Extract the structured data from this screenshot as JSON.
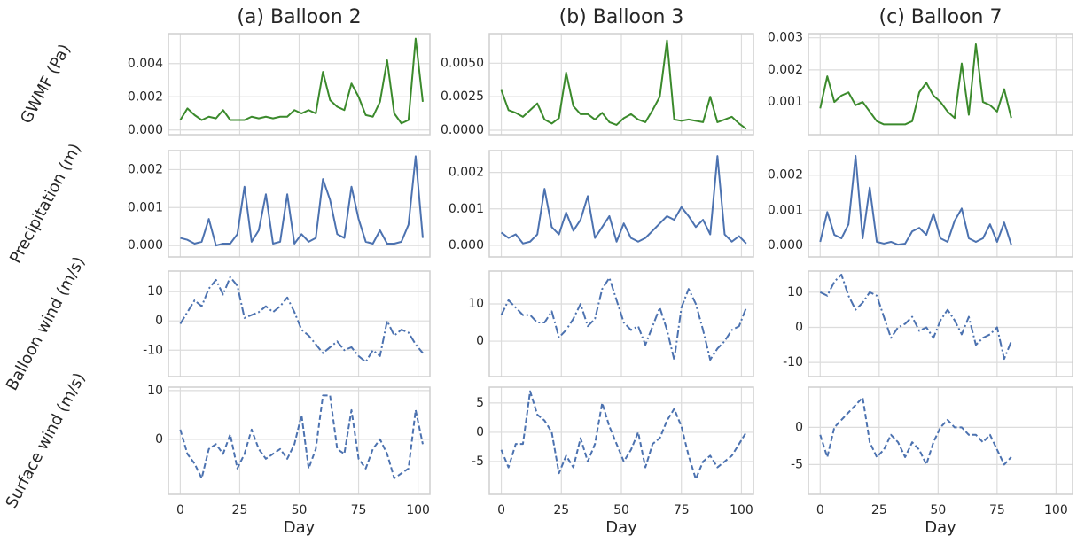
{
  "chart_data": [
    {
      "type": "line",
      "title": "(a) Balloon 2",
      "ylabel": "GWMF (Pa)",
      "x": [
        0,
        3,
        6,
        9,
        12,
        15,
        18,
        21,
        24,
        27,
        30,
        33,
        36,
        39,
        42,
        45,
        48,
        51,
        54,
        57,
        60,
        63,
        66,
        69,
        72,
        75,
        78,
        81,
        84,
        87,
        90,
        93,
        96,
        99,
        102
      ],
      "series": [
        {
          "color": "#3b8a2c",
          "linestyle": "solid",
          "values": [
            0.0006,
            0.0013,
            0.0009,
            0.0006,
            0.0008,
            0.0007,
            0.0012,
            0.0006,
            0.0006,
            0.0006,
            0.0008,
            0.0007,
            0.0008,
            0.0007,
            0.0008,
            0.0008,
            0.0012,
            0.001,
            0.0012,
            0.001,
            0.0035,
            0.0018,
            0.0014,
            0.0012,
            0.0028,
            0.002,
            0.0009,
            0.0008,
            0.0017,
            0.0042,
            0.001,
            0.0004,
            0.0006,
            0.0055,
            0.0017
          ]
        }
      ],
      "xlim": [
        -5,
        105
      ],
      "ylim": [
        -0.00028,
        0.0058
      ],
      "xticks": [
        0,
        25,
        50,
        75,
        100
      ],
      "xtick_labels": false,
      "yticks": [
        {
          "value": 0,
          "label": "0.000"
        },
        0.002,
        0.004
      ],
      "grid": true
    },
    {
      "type": "line",
      "title": "(b) Balloon 3",
      "x": [
        0,
        3,
        6,
        9,
        12,
        15,
        18,
        21,
        24,
        27,
        30,
        33,
        36,
        39,
        42,
        45,
        48,
        51,
        54,
        57,
        60,
        63,
        66,
        69,
        72,
        75,
        78,
        81,
        84,
        87,
        90,
        93,
        96,
        99,
        102
      ],
      "series": [
        {
          "color": "#3b8a2c",
          "linestyle": "solid",
          "values": [
            0.003,
            0.0015,
            0.0013,
            0.001,
            0.0015,
            0.002,
            0.0008,
            0.0005,
            0.0009,
            0.0043,
            0.0018,
            0.0012,
            0.0012,
            0.0008,
            0.0013,
            0.0006,
            0.0004,
            0.0009,
            0.0012,
            0.0008,
            0.0006,
            0.0015,
            0.0025,
            0.0067,
            0.0008,
            0.0007,
            0.0008,
            0.0007,
            0.0006,
            0.0025,
            0.0006,
            0.0008,
            0.001,
            0.0005,
            0.0001
          ]
        }
      ],
      "xlim": [
        -5,
        105
      ],
      "ylim": [
        -0.00033,
        0.0072
      ],
      "xticks": [
        0,
        25,
        50,
        75,
        100
      ],
      "xtick_labels": false,
      "yticks": [
        {
          "value": 0,
          "label": "0.0000"
        },
        0.0025,
        {
          "value": 0.005,
          "label": "0.0050"
        }
      ],
      "grid": true
    },
    {
      "type": "line",
      "title": "(c) Balloon 7",
      "x": [
        0,
        3,
        6,
        9,
        12,
        15,
        18,
        21,
        24,
        27,
        30,
        33,
        36,
        39,
        42,
        45,
        48,
        51,
        54,
        57,
        60,
        63,
        66,
        69,
        72,
        75,
        78,
        81
      ],
      "series": [
        {
          "color": "#3b8a2c",
          "linestyle": "solid",
          "values": [
            0.0008,
            0.0018,
            0.001,
            0.0012,
            0.0013,
            0.0009,
            0.001,
            0.0007,
            0.0004,
            0.0003,
            0.0003,
            0.0003,
            0.0003,
            0.0004,
            0.0013,
            0.0016,
            0.0012,
            0.001,
            0.0007,
            0.0005,
            0.0022,
            0.0006,
            0.0028,
            0.001,
            0.0009,
            0.0007,
            0.0014,
            0.0005
          ]
        }
      ],
      "xlim": [
        -5,
        107
      ],
      "ylim": [
        -2e-05,
        0.00313
      ],
      "xticks": [
        0,
        25,
        50,
        75,
        100
      ],
      "xtick_labels": false,
      "yticks": [
        0.001,
        0.002,
        0.003
      ],
      "grid": true
    },
    {
      "type": "line",
      "ylabel": "Precipitation (m)",
      "x": [
        0,
        3,
        6,
        9,
        12,
        15,
        18,
        21,
        24,
        27,
        30,
        33,
        36,
        39,
        42,
        45,
        48,
        51,
        54,
        57,
        60,
        63,
        66,
        69,
        72,
        75,
        78,
        81,
        84,
        87,
        90,
        93,
        96,
        99,
        102
      ],
      "series": [
        {
          "color": "#4c72b0",
          "linestyle": "solid",
          "values": [
            0.0002,
            0.00015,
            5e-05,
            0.0001,
            0.0007,
            0,
            5e-05,
            5e-05,
            0.0003,
            0.00155,
            0.0001,
            0.0004,
            0.00135,
            5e-05,
            0.0001,
            0.00135,
            5e-05,
            0.0003,
            0.0001,
            0.0002,
            0.00175,
            0.0012,
            0.0003,
            0.0002,
            0.00155,
            0.0007,
            0.0001,
            5e-05,
            0.0004,
            5e-05,
            5e-05,
            0.0001,
            0.00055,
            0.00235,
            0.0002
          ]
        }
      ],
      "xlim": [
        -5,
        105
      ],
      "ylim": [
        -0.0003,
        0.0025
      ],
      "xticks": [
        0,
        25,
        50,
        75,
        100
      ],
      "xtick_labels": false,
      "yticks": [
        {
          "value": 0,
          "label": "0.000"
        },
        0.001,
        0.002
      ],
      "grid": true
    },
    {
      "type": "line",
      "x": [
        0,
        3,
        6,
        9,
        12,
        15,
        18,
        21,
        24,
        27,
        30,
        33,
        36,
        39,
        42,
        45,
        48,
        51,
        54,
        57,
        60,
        63,
        66,
        69,
        72,
        75,
        78,
        81,
        84,
        87,
        90,
        93,
        96,
        99,
        102
      ],
      "series": [
        {
          "color": "#4c72b0",
          "linestyle": "solid",
          "values": [
            0.00035,
            0.0002,
            0.0003,
            5e-05,
            0.0001,
            0.0003,
            0.00155,
            0.0005,
            0.0003,
            0.0009,
            0.0004,
            0.0007,
            0.00135,
            0.0002,
            0.0005,
            0.0008,
            0.0001,
            0.0006,
            0.0002,
            0.0001,
            0.0002,
            0.0004,
            0.0006,
            0.0008,
            0.0007,
            0.00105,
            0.0008,
            0.0005,
            0.0007,
            0.0003,
            0.00245,
            0.0003,
            0.0001,
            0.00025,
            5e-05
          ]
        }
      ],
      "xlim": [
        -5,
        105
      ],
      "ylim": [
        -0.00032,
        0.0026
      ],
      "xticks": [
        0,
        25,
        50,
        75,
        100
      ],
      "xtick_labels": false,
      "yticks": [
        {
          "value": 0,
          "label": "0.000"
        },
        0.001,
        0.002
      ],
      "grid": true
    },
    {
      "type": "line",
      "x": [
        0,
        3,
        6,
        9,
        12,
        15,
        18,
        21,
        24,
        27,
        30,
        33,
        36,
        39,
        42,
        45,
        48,
        51,
        54,
        57,
        60,
        63,
        66,
        69,
        72,
        75,
        78,
        81
      ],
      "series": [
        {
          "color": "#4c72b0",
          "linestyle": "solid",
          "values": [
            0.0001,
            0.00095,
            0.0003,
            0.0002,
            0.0006,
            0.00255,
            0.0002,
            0.00165,
            0.0001,
            5e-05,
            0.0001,
            2e-05,
            5e-05,
            0.0004,
            0.0005,
            0.0003,
            0.0009,
            0.0002,
            0.0001,
            0.0007,
            0.00105,
            0.0002,
            0.0001,
            0.0002,
            0.0006,
            0.0001,
            0.00065,
            2e-05
          ]
        }
      ],
      "xlim": [
        -5,
        107
      ],
      "ylim": [
        -0.00033,
        0.0027
      ],
      "xticks": [
        0,
        25,
        50,
        75,
        100
      ],
      "xtick_labels": false,
      "yticks": [
        {
          "value": 0,
          "label": "0.000"
        },
        0.001,
        0.002
      ],
      "grid": true
    },
    {
      "type": "line",
      "ylabel": "Balloon wind (m/s)",
      "x": [
        0,
        3,
        6,
        9,
        12,
        15,
        18,
        21,
        24,
        27,
        30,
        33,
        36,
        39,
        42,
        45,
        48,
        51,
        54,
        57,
        60,
        63,
        66,
        69,
        72,
        75,
        78,
        81,
        84,
        87,
        90,
        93,
        96,
        99,
        102
      ],
      "series": [
        {
          "color": "#4c72b0",
          "linestyle": "dashdot",
          "values": [
            -1,
            3,
            7,
            5,
            11,
            14,
            9,
            15,
            12,
            1,
            2,
            3,
            5,
            3,
            5,
            8,
            3,
            -3,
            -5,
            -8,
            -11,
            -9,
            -7,
            -10,
            -9,
            -12,
            -14,
            -10,
            -12,
            0,
            -5,
            -3,
            -4,
            -8,
            -11
          ]
        }
      ],
      "xlim": [
        -5,
        105
      ],
      "ylim": [
        -19,
        17
      ],
      "xticks": [
        0,
        25,
        50,
        75,
        100
      ],
      "xtick_labels": false,
      "yticks": [
        -10,
        0,
        10
      ],
      "grid": true
    },
    {
      "type": "line",
      "x": [
        0,
        3,
        6,
        9,
        12,
        15,
        18,
        21,
        24,
        27,
        30,
        33,
        36,
        39,
        42,
        45,
        48,
        51,
        54,
        57,
        60,
        63,
        66,
        69,
        72,
        75,
        78,
        81,
        84,
        87,
        90,
        93,
        96,
        99,
        102
      ],
      "series": [
        {
          "color": "#4c72b0",
          "linestyle": "dashdot",
          "values": [
            7,
            11,
            9,
            7,
            7,
            5,
            5,
            8,
            1,
            3,
            6,
            10,
            4,
            6,
            14,
            17,
            11,
            5,
            3,
            4,
            -1,
            4,
            9,
            3,
            -5,
            9,
            14,
            10,
            3,
            -5,
            -2,
            0,
            3,
            4,
            9
          ]
        }
      ],
      "xlim": [
        -5,
        105
      ],
      "ylim": [
        -9.5,
        18.8
      ],
      "xticks": [
        0,
        25,
        50,
        75,
        100
      ],
      "xtick_labels": false,
      "yticks": [
        0,
        10
      ],
      "grid": true
    },
    {
      "type": "line",
      "x": [
        0,
        3,
        6,
        9,
        12,
        15,
        18,
        21,
        24,
        27,
        30,
        33,
        36,
        39,
        42,
        45,
        48,
        51,
        54,
        57,
        60,
        63,
        66,
        69,
        72,
        75,
        78,
        81
      ],
      "series": [
        {
          "color": "#4c72b0",
          "linestyle": "dashdot",
          "values": [
            10,
            9,
            13,
            15,
            9,
            5,
            7,
            10,
            9,
            3,
            -3,
            0,
            1,
            3,
            -1,
            0,
            -3,
            2,
            5,
            2,
            -2,
            3,
            -5,
            -3,
            -2,
            0,
            -9,
            -4
          ]
        }
      ],
      "xlim": [
        -5,
        107
      ],
      "ylim": [
        -14,
        16
      ],
      "xticks": [
        0,
        25,
        50,
        75,
        100
      ],
      "xtick_labels": false,
      "yticks": [
        -10,
        0,
        10
      ],
      "grid": true
    },
    {
      "type": "line",
      "ylabel": "Surface wind (m/s)",
      "xlabel": "Day",
      "x": [
        0,
        3,
        6,
        9,
        12,
        15,
        18,
        21,
        24,
        27,
        30,
        33,
        36,
        39,
        42,
        45,
        48,
        51,
        54,
        57,
        60,
        63,
        66,
        69,
        72,
        75,
        78,
        81,
        84,
        87,
        90,
        93,
        96,
        99,
        102
      ],
      "series": [
        {
          "color": "#4c72b0",
          "linestyle": "dashed",
          "values": [
            2,
            -3,
            -5,
            -8,
            -2,
            -1,
            -3,
            1,
            -6,
            -3,
            2,
            -2,
            -4,
            -3,
            -2,
            -4,
            -1,
            5,
            -6,
            -2,
            9,
            9,
            -2,
            -3,
            6,
            -4,
            -6,
            -2,
            0,
            -3,
            -8,
            -7,
            -6,
            6,
            -1
          ]
        }
      ],
      "xlim": [
        -5,
        105
      ],
      "ylim": [
        -11.3,
        10.7
      ],
      "xticks": [
        0,
        25,
        50,
        75,
        100
      ],
      "xtick_labels": true,
      "yticks": [
        0,
        10
      ],
      "grid": true
    },
    {
      "type": "line",
      "xlabel": "Day",
      "x": [
        0,
        3,
        6,
        9,
        12,
        15,
        18,
        21,
        24,
        27,
        30,
        33,
        36,
        39,
        42,
        45,
        48,
        51,
        54,
        57,
        60,
        63,
        66,
        69,
        72,
        75,
        78,
        81,
        84,
        87,
        90,
        93,
        96,
        99,
        102
      ],
      "series": [
        {
          "color": "#4c72b0",
          "linestyle": "dashed",
          "values": [
            -3,
            -6,
            -2,
            -2,
            7,
            3,
            2,
            0,
            -7,
            -4,
            -6,
            -1,
            -5,
            -2,
            5,
            1,
            -2,
            -5,
            -3,
            0,
            -6,
            -2,
            -1,
            2,
            4,
            1,
            -4,
            -8,
            -5,
            -4,
            -6,
            -5,
            -4,
            -2,
            0
          ]
        }
      ],
      "xlim": [
        -5,
        105
      ],
      "ylim": [
        -10.6,
        7.7
      ],
      "xticks": [
        0,
        25,
        50,
        75,
        100
      ],
      "xtick_labels": true,
      "yticks": [
        -5,
        0,
        5
      ],
      "grid": true
    },
    {
      "type": "line",
      "xlabel": "Day",
      "x": [
        0,
        3,
        6,
        9,
        12,
        15,
        18,
        21,
        24,
        27,
        30,
        33,
        36,
        39,
        42,
        45,
        48,
        51,
        54,
        57,
        60,
        63,
        66,
        69,
        72,
        75,
        78,
        81
      ],
      "series": [
        {
          "color": "#4c72b0",
          "linestyle": "dashed",
          "values": [
            -1,
            -4,
            0,
            1,
            2,
            3,
            4,
            -2,
            -4,
            -3,
            -1,
            -2,
            -4,
            -2,
            -3,
            -5,
            -2,
            0,
            1,
            0,
            0,
            -1,
            -1,
            -2,
            -1,
            -3,
            -5,
            -4
          ]
        }
      ],
      "xlim": [
        -5,
        107
      ],
      "ylim": [
        -9,
        5.4
      ],
      "xticks": [
        0,
        25,
        50,
        75,
        100
      ],
      "xtick_labels": true,
      "yticks": [
        -5,
        0
      ],
      "grid": true
    }
  ]
}
